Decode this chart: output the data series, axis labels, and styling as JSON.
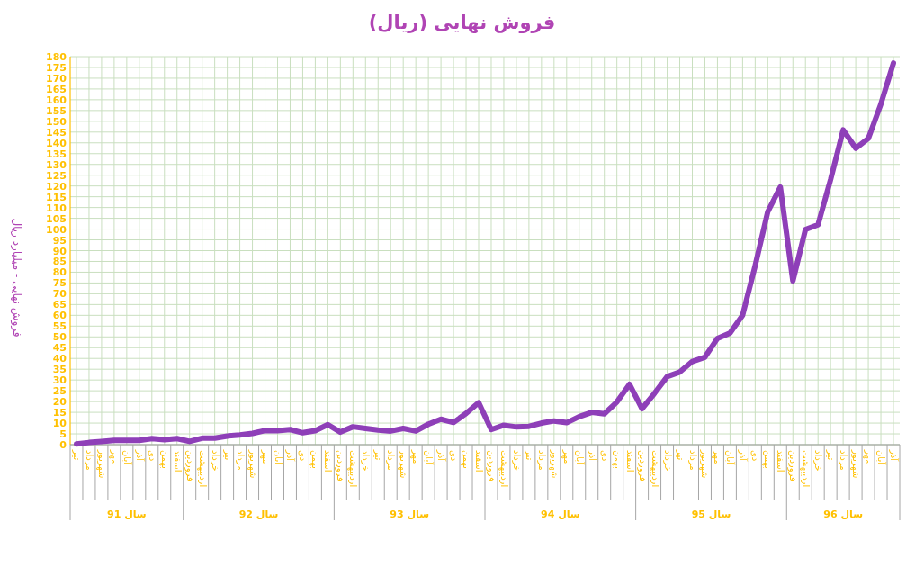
{
  "chart_data": {
    "type": "line",
    "title": "فروش نهایی (ریال)",
    "ylabel": "فروش نهایی - میلیارد ریال",
    "categories": [
      "تیر",
      "مرداد",
      "شهریور",
      "مهر",
      "آبان",
      "آذر",
      "دی",
      "بهمن",
      "اسفند",
      "فروردین",
      "اردیبهشت",
      "خرداد",
      "تیر",
      "مرداد",
      "شهریور",
      "مهر",
      "آبان",
      "آذر",
      "دی",
      "بهمن",
      "اسفند",
      "فروردین",
      "اردیبهشت",
      "خرداد",
      "تیر",
      "مرداد",
      "شهریور",
      "مهر",
      "آبان",
      "آذر",
      "دی",
      "بهمن",
      "اسفند",
      "فروردین",
      "اردیبهشت",
      "خرداد",
      "تیر",
      "مرداد",
      "شهریور",
      "مهر",
      "آبان",
      "آذر",
      "دی",
      "بهمن",
      "اسفند",
      "فروردین",
      "اردیبهشت",
      "خرداد",
      "تیر",
      "مرداد",
      "شهریور",
      "مهر",
      "آبان",
      "آذر",
      "دی",
      "بهمن",
      "اسفند",
      "فروردین",
      "اردیبهشت",
      "خرداد",
      "تیر",
      "مرداد",
      "شهریور",
      "مهر",
      "آبان",
      "آذر"
    ],
    "series": [
      {
        "color": "#8e3fb8",
        "values": [
          0.3,
          1,
          1.5,
          2,
          2,
          2,
          2.8,
          2.3,
          2.8,
          1.5,
          3,
          3,
          4,
          4.5,
          5.2,
          6.5,
          6.5,
          7,
          5.5,
          6.5,
          9.3,
          5.8,
          8.3,
          7.5,
          6.8,
          6.3,
          7.5,
          6.3,
          9.5,
          11.8,
          10.3,
          14.5,
          19.5,
          7,
          9,
          8.2,
          8.5,
          10,
          11,
          10.2,
          13,
          15,
          14.3,
          19.8,
          28,
          16.7,
          23.9,
          31.6,
          33.7,
          38.6,
          40.6,
          49.3,
          51.8,
          60,
          83,
          108,
          119.5,
          76,
          99.8,
          102,
          123,
          146,
          137.5,
          142,
          158,
          177
        ]
      }
    ],
    "ylim": [
      0,
      180
    ],
    "yticks": [
      0,
      5,
      10,
      15,
      20,
      25,
      30,
      35,
      40,
      45,
      50,
      55,
      60,
      65,
      70,
      75,
      80,
      85,
      90,
      95,
      100,
      105,
      110,
      115,
      120,
      125,
      130,
      135,
      140,
      145,
      150,
      155,
      160,
      165,
      170,
      175,
      180
    ],
    "grid": true,
    "marker": "none",
    "line_style": "solid",
    "annotations": [
      "سال 91",
      "سال 92",
      "سال 93",
      "سال 94",
      "سال 95",
      "سال 96"
    ]
  }
}
